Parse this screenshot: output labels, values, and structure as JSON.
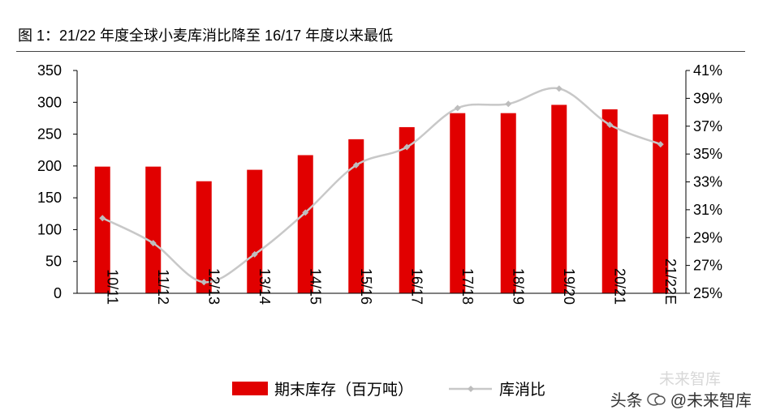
{
  "title": "图 1：21/22 年度全球小麦库消比降至 16/17 年度以来最低",
  "watermark": {
    "prefix": "头条",
    "account": "@未来智库",
    "overlay_text": "未来智库"
  },
  "colors": {
    "bar": "#e10000",
    "line": "#c8c8c8",
    "marker": "#bdbdbd"
  },
  "chart_data": {
    "type": "bar+line",
    "categories": [
      "10/11",
      "11/12",
      "12/13",
      "13/14",
      "14/15",
      "15/16",
      "16/17",
      "17/18",
      "18/19",
      "19/20",
      "20/21",
      "21/22E"
    ],
    "series": [
      {
        "name": "期末库存（百万吨）",
        "type": "bar",
        "axis": "left",
        "values": [
          199,
          199,
          176,
          194,
          217,
          242,
          261,
          283,
          283,
          296,
          289,
          281
        ]
      },
      {
        "name": "库消比",
        "type": "line",
        "axis": "right",
        "values": [
          30.4,
          28.6,
          25.8,
          27.8,
          30.8,
          34.2,
          35.5,
          38.3,
          38.6,
          39.7,
          37.1,
          35.7
        ]
      }
    ],
    "y_left": {
      "min": 0,
      "max": 350,
      "ticks": [
        0,
        50,
        100,
        150,
        200,
        250,
        300,
        350
      ]
    },
    "y_right": {
      "min": 25,
      "max": 41,
      "ticks": [
        25,
        27,
        29,
        31,
        33,
        35,
        37,
        39,
        41
      ],
      "unit": "%"
    },
    "legend": {
      "placement": "bottom",
      "items": [
        "期末库存（百万吨）",
        "库消比"
      ]
    },
    "grid": false
  }
}
